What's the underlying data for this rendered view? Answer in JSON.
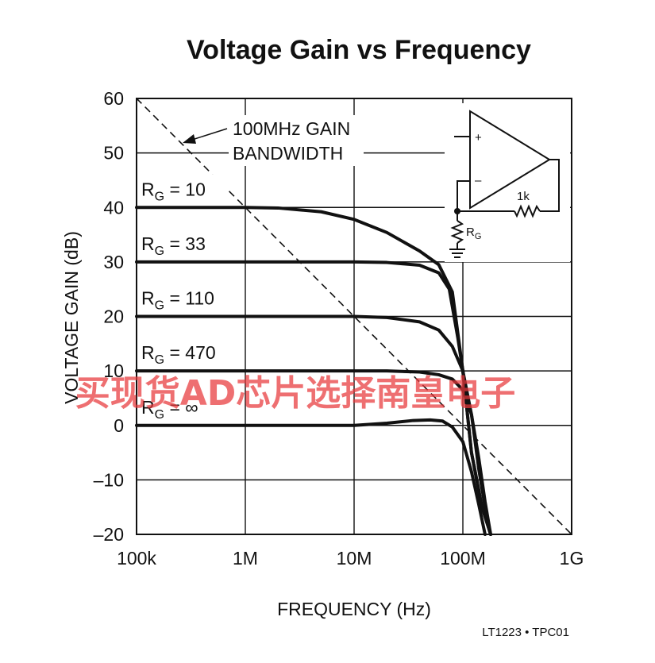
{
  "chart_data": {
    "type": "line",
    "title": "Voltage Gain vs Frequency",
    "xlabel": "FREQUENCY (Hz)",
    "ylabel": "VOLTAGE GAIN (dB)",
    "x_scale": "log",
    "xlim": [
      100000,
      1000000000
    ],
    "ylim": [
      -20,
      60
    ],
    "x_ticks": [
      {
        "value": 100000,
        "label": "100k"
      },
      {
        "value": 1000000,
        "label": "1M"
      },
      {
        "value": 10000000,
        "label": "10M"
      },
      {
        "value": 100000000,
        "label": "100M"
      },
      {
        "value": 1000000000,
        "label": "1G"
      }
    ],
    "y_ticks": [
      {
        "value": 60,
        "label": "60"
      },
      {
        "value": 50,
        "label": "50"
      },
      {
        "value": 40,
        "label": "40"
      },
      {
        "value": 30,
        "label": "30"
      },
      {
        "value": 20,
        "label": "20"
      },
      {
        "value": 10,
        "label": "10"
      },
      {
        "value": 0,
        "label": "0"
      },
      {
        "value": -10,
        "label": "–10"
      },
      {
        "value": -20,
        "label": "–20"
      }
    ],
    "grid": true,
    "series": [
      {
        "name": "RG = 10",
        "label_base": "R",
        "label_sub": "G",
        "label_rest": " = 10",
        "points": [
          [
            100000,
            40
          ],
          [
            1000000,
            40
          ],
          [
            2000000,
            39.9
          ],
          [
            5000000,
            39.2
          ],
          [
            10000000,
            37.8
          ],
          [
            20000000,
            35.4
          ],
          [
            40000000,
            32.0
          ],
          [
            60000000,
            29.5
          ],
          [
            80000000,
            24.5
          ],
          [
            100000000,
            10.0
          ],
          [
            120000000,
            -5.0
          ],
          [
            150000000,
            -15.0
          ],
          [
            180000000,
            -20.0
          ]
        ]
      },
      {
        "name": "RG = 33",
        "label_base": "R",
        "label_sub": "G",
        "label_rest": " = 33",
        "points": [
          [
            100000,
            30
          ],
          [
            10000000,
            30
          ],
          [
            20000000,
            29.9
          ],
          [
            40000000,
            29.4
          ],
          [
            60000000,
            28.0
          ],
          [
            75000000,
            25.0
          ],
          [
            90000000,
            16.0
          ],
          [
            100000000,
            10.0
          ],
          [
            120000000,
            -5.0
          ],
          [
            150000000,
            -15.0
          ],
          [
            180000000,
            -20.0
          ]
        ]
      },
      {
        "name": "RG = 110",
        "label_base": "R",
        "label_sub": "G",
        "label_rest": " = 110",
        "points": [
          [
            100000,
            20
          ],
          [
            10000000,
            20
          ],
          [
            20000000,
            19.8
          ],
          [
            40000000,
            19.0
          ],
          [
            60000000,
            17.5
          ],
          [
            80000000,
            14.5
          ],
          [
            100000000,
            10.0
          ],
          [
            120000000,
            2.0
          ],
          [
            140000000,
            -8.0
          ],
          [
            160000000,
            -15.0
          ],
          [
            180000000,
            -20.0
          ]
        ]
      },
      {
        "name": "RG = 470",
        "label_base": "R",
        "label_sub": "G",
        "label_rest": " = 470",
        "points": [
          [
            100000,
            10
          ],
          [
            20000000,
            10
          ],
          [
            40000000,
            9.8
          ],
          [
            60000000,
            9.3
          ],
          [
            80000000,
            8.5
          ],
          [
            100000000,
            6.5
          ],
          [
            120000000,
            2.0
          ],
          [
            140000000,
            -6.0
          ],
          [
            160000000,
            -14.0
          ],
          [
            180000000,
            -20.0
          ]
        ]
      },
      {
        "name": "RG = ∞",
        "label_base": "R",
        "label_sub": "G",
        "label_rest": " = ∞",
        "points": [
          [
            100000,
            0
          ],
          [
            10000000,
            0
          ],
          [
            20000000,
            0.4
          ],
          [
            35000000,
            0.9
          ],
          [
            50000000,
            1.0
          ],
          [
            65000000,
            0.8
          ],
          [
            80000000,
            -0.3
          ],
          [
            100000000,
            -3.0
          ],
          [
            120000000,
            -8.5
          ],
          [
            140000000,
            -14.5
          ],
          [
            160000000,
            -20.0
          ]
        ]
      }
    ],
    "gbw_line": {
      "points": [
        [
          100000,
          60
        ],
        [
          1000000000,
          -20
        ]
      ]
    },
    "annotations": {
      "gbw_line1": "100MHz GAIN",
      "gbw_line2": "BANDWIDTH",
      "inset_plus": "+",
      "inset_minus": "–",
      "inset_resistor": "1k",
      "inset_rg_base": "R",
      "inset_rg_sub": "G",
      "part_code": "LT1223 • TPC01",
      "watermark": "买现货AD芯片选择南皇电子"
    }
  }
}
